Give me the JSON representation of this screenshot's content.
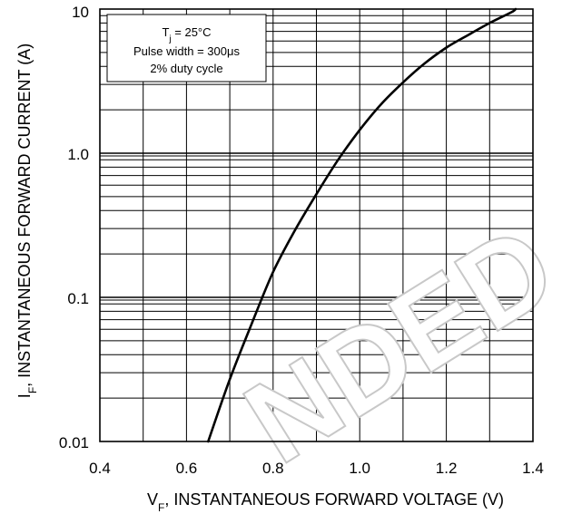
{
  "chart_data": {
    "type": "line",
    "xlabel": "V",
    "xlabel_sub": "F",
    "xlabel_rest": ", INSTANTANEOUS FORWARD VOLTAGE (V)",
    "ylabel": "I",
    "ylabel_sub": "F",
    "ylabel_rest": ", INSTANTANEOUS FORWARD CURRENT (A)",
    "xlim": [
      0.4,
      1.4
    ],
    "ylim": [
      0.01,
      10
    ],
    "yscale": "log",
    "grid": true,
    "x_ticks": [
      0.4,
      0.6,
      0.8,
      1.0,
      1.2,
      1.4
    ],
    "x_tick_labels": [
      "0.4",
      "0.6",
      "0.8",
      "1.0",
      "1.2",
      "1.4"
    ],
    "y_ticks": [
      0.01,
      0.1,
      1.0,
      10
    ],
    "y_tick_labels": [
      "0.01",
      "0.1",
      "1.0",
      "10"
    ],
    "series": [
      {
        "x": [
          0.65,
          0.7,
          0.75,
          0.8,
          0.85,
          0.9,
          0.95,
          1.0,
          1.05,
          1.1,
          1.15,
          1.2,
          1.25,
          1.3,
          1.35,
          1.36
        ],
        "y": [
          0.01,
          0.027,
          0.065,
          0.15,
          0.29,
          0.52,
          0.9,
          1.45,
          2.2,
          3.1,
          4.2,
          5.4,
          6.6,
          8.0,
          9.5,
          10.0
        ]
      }
    ],
    "annotation": {
      "line1_main": "T",
      "line1_sub": "j",
      "line1_rest": " = 25°C",
      "line2": "Pulse width = 300μs",
      "line3": "2% duty cycle"
    },
    "watermark": "NDED"
  }
}
